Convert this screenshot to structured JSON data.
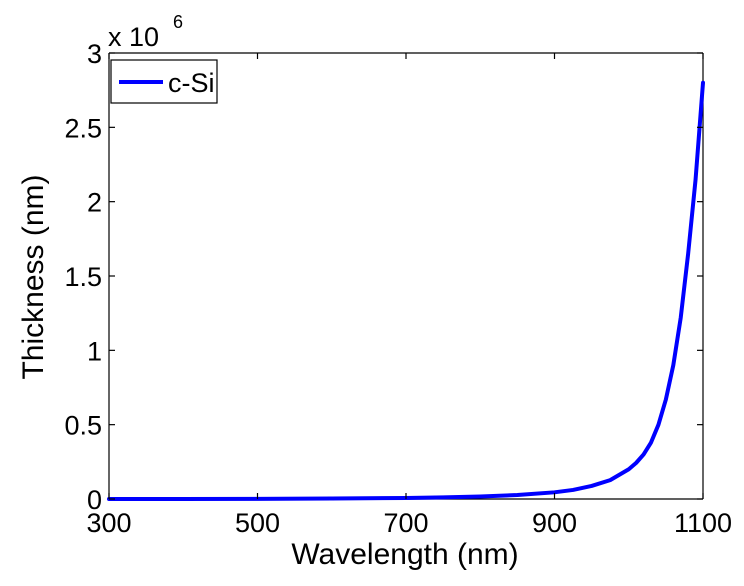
{
  "chart_data": {
    "type": "line",
    "xlabel": "Wavelength (nm)",
    "ylabel": "Thickness (nm)",
    "xlim": [
      300,
      1100
    ],
    "ylim": [
      0,
      3
    ],
    "y_multiplier_label": {
      "base": "x 10",
      "exponent": "6"
    },
    "xticks": [
      300,
      500,
      700,
      900,
      1100
    ],
    "xtick_labels": [
      "300",
      "500",
      "700",
      "900",
      "1100"
    ],
    "yticks": [
      0,
      0.5,
      1,
      1.5,
      2,
      2.5,
      3
    ],
    "ytick_labels": [
      "0",
      "0.5",
      "1",
      "1.5",
      "2",
      "2.5",
      "3"
    ],
    "grid": false,
    "legend": {
      "placement": "top-left",
      "entries": [
        "c-Si"
      ]
    },
    "series": [
      {
        "name": "c-Si",
        "color": "#0000ff",
        "x": [
          300,
          400,
          500,
          600,
          700,
          750,
          800,
          850,
          900,
          925,
          950,
          975,
          1000,
          1010,
          1020,
          1030,
          1040,
          1050,
          1060,
          1070,
          1080,
          1090,
          1100
        ],
        "y": [
          0,
          0,
          0.001,
          0.003,
          0.007,
          0.011,
          0.017,
          0.027,
          0.045,
          0.061,
          0.088,
          0.127,
          0.2,
          0.243,
          0.3,
          0.38,
          0.5,
          0.67,
          0.9,
          1.22,
          1.65,
          2.15,
          2.8
        ]
      }
    ]
  }
}
